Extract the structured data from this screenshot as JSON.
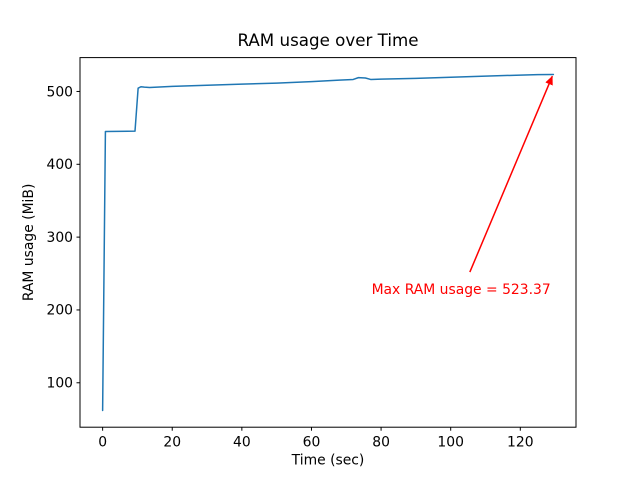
{
  "figure": {
    "background": "#ffffff",
    "frame_color": "#000000",
    "text_color": "#000000"
  },
  "chart_data": {
    "type": "line",
    "title": "RAM usage over Time",
    "xlabel": "Time (sec)",
    "ylabel": "RAM usage (MiB)",
    "xlim": [
      -6.5,
      136
    ],
    "ylim": [
      39,
      546.5
    ],
    "xticks": [
      0,
      20,
      40,
      60,
      80,
      100,
      120
    ],
    "yticks": [
      100,
      200,
      300,
      400,
      500
    ],
    "grid": false,
    "legend": null,
    "series": [
      {
        "name": "RAM usage",
        "color": "#1f77b4",
        "line_width": 1.5,
        "points": [
          [
            0,
            62
          ],
          [
            0.8,
            445
          ],
          [
            9.3,
            445.5
          ],
          [
            10.2,
            504.5
          ],
          [
            11,
            506.5
          ],
          [
            12,
            506
          ],
          [
            13.5,
            505.5
          ],
          [
            20,
            507
          ],
          [
            30,
            508.5
          ],
          [
            40,
            510
          ],
          [
            50,
            511.5
          ],
          [
            60,
            513.5
          ],
          [
            68,
            515.5
          ],
          [
            72,
            516.5
          ],
          [
            73.5,
            519
          ],
          [
            75.5,
            518.5
          ],
          [
            77,
            516.5
          ],
          [
            80,
            517
          ],
          [
            90,
            518
          ],
          [
            100,
            519.5
          ],
          [
            110,
            521
          ],
          [
            120,
            522.5
          ],
          [
            125,
            523.2
          ],
          [
            129.5,
            523.37
          ]
        ]
      }
    ],
    "max_value": 523.37,
    "annotation": {
      "text": "Max RAM usage = 523.37",
      "color": "#ff0000",
      "text_xy": [
        103,
        229
      ],
      "arrow_from": [
        105.5,
        252
      ],
      "arrow_to": [
        129.2,
        521
      ]
    }
  }
}
